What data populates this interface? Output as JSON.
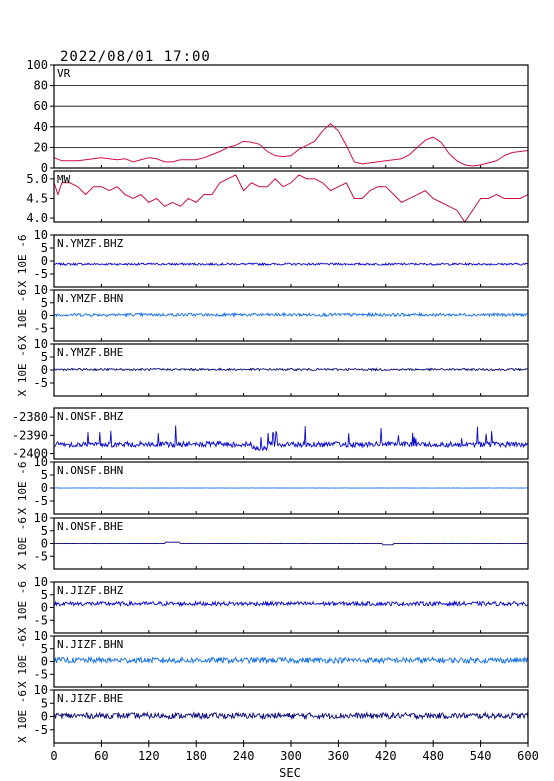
{
  "header": {
    "timestamp": "2022/08/01 17:00"
  },
  "colors": {
    "vr": "#d01040",
    "mw": "#c8103c",
    "bhz": "#0a0acd",
    "bhn": "#1670e6",
    "bhe": "#0b0b7a",
    "frame": "#000000"
  },
  "chart_data": {
    "type": "line",
    "xlabel": "SEC",
    "xlim": [
      0,
      600
    ],
    "xticks": [
      0,
      60,
      120,
      180,
      240,
      300,
      360,
      420,
      480,
      540,
      600
    ],
    "ylabel_seismic": "X 10E -6",
    "panels": [
      {
        "label": "VR",
        "ylim": [
          0,
          100
        ],
        "yticks": [
          0,
          20,
          40,
          60,
          80,
          100
        ],
        "grid": true,
        "color_key": "vr",
        "series": {
          "x": [
            0,
            10,
            20,
            30,
            40,
            50,
            60,
            70,
            80,
            90,
            100,
            110,
            120,
            130,
            140,
            150,
            160,
            170,
            180,
            190,
            200,
            210,
            220,
            230,
            240,
            250,
            260,
            270,
            280,
            290,
            300,
            310,
            320,
            330,
            340,
            350,
            360,
            370,
            380,
            390,
            400,
            410,
            420,
            430,
            440,
            450,
            460,
            470,
            480,
            490,
            500,
            510,
            520,
            530,
            540,
            550,
            560,
            570,
            580,
            590,
            600
          ],
          "y": [
            10,
            7,
            7,
            7,
            8,
            9,
            10,
            9,
            8,
            9,
            6,
            8,
            10,
            9,
            6,
            6,
            8,
            8,
            8,
            10,
            13,
            16,
            20,
            22,
            26,
            25,
            23,
            16,
            12,
            11,
            12,
            18,
            22,
            26,
            36,
            43,
            36,
            22,
            6,
            4,
            5,
            6,
            7,
            8,
            9,
            13,
            20,
            27,
            30,
            25,
            14,
            7,
            3,
            2,
            3,
            5,
            7,
            12,
            15,
            16,
            17
          ]
        }
      },
      {
        "label": "MW",
        "ylim": [
          3.9,
          5.2
        ],
        "yticks": [
          4.0,
          4.5,
          5.0
        ],
        "grid": false,
        "color_key": "mw",
        "series": {
          "x": [
            0,
            5,
            10,
            20,
            30,
            40,
            50,
            60,
            70,
            80,
            90,
            100,
            110,
            120,
            130,
            140,
            150,
            160,
            170,
            180,
            190,
            200,
            210,
            220,
            230,
            240,
            250,
            260,
            270,
            280,
            290,
            300,
            310,
            320,
            330,
            340,
            350,
            360,
            370,
            380,
            390,
            400,
            410,
            420,
            430,
            440,
            450,
            460,
            470,
            480,
            490,
            500,
            510,
            520,
            530,
            540,
            550,
            560,
            570,
            580,
            590,
            600
          ],
          "y": [
            4.9,
            4.6,
            4.9,
            4.9,
            4.8,
            4.6,
            4.8,
            4.8,
            4.7,
            4.8,
            4.6,
            4.5,
            4.6,
            4.4,
            4.5,
            4.3,
            4.4,
            4.3,
            4.5,
            4.4,
            4.6,
            4.6,
            4.9,
            5.0,
            5.1,
            4.7,
            4.9,
            4.8,
            4.8,
            5.0,
            4.8,
            4.9,
            5.1,
            5.0,
            5.0,
            4.9,
            4.7,
            4.8,
            4.9,
            4.5,
            4.5,
            4.7,
            4.8,
            4.8,
            4.6,
            4.4,
            4.5,
            4.6,
            4.7,
            4.5,
            4.4,
            4.3,
            4.2,
            3.9,
            4.2,
            4.5,
            4.5,
            4.6,
            4.5,
            4.5,
            4.5,
            4.6
          ]
        }
      },
      {
        "label": "N.YMZF.BHZ",
        "ylim": [
          -10,
          10
        ],
        "yticks": [
          -5,
          0,
          5,
          10
        ],
        "color_key": "bhz",
        "level": -1.2,
        "noise": 0.4
      },
      {
        "label": "N.YMZF.BHN",
        "ylim": [
          -10,
          10
        ],
        "yticks": [
          -5,
          0,
          5,
          10
        ],
        "color_key": "bhn",
        "level": 0.3,
        "noise": 0.6
      },
      {
        "label": "N.YMZF.BHE",
        "ylim": [
          -10,
          10
        ],
        "yticks": [
          -5,
          0,
          5,
          10
        ],
        "color_key": "bhe",
        "level": 0.2,
        "noise": 0.4
      },
      {
        "label": "N.ONSF.BHZ",
        "ylim": [
          -2403,
          -2375
        ],
        "yticks": [
          -2400,
          -2390,
          -2380
        ],
        "color_key": "bhz",
        "level": -2395,
        "noise": 1.5
      },
      {
        "label": "N.ONSF.BHN",
        "ylim": [
          -10,
          10
        ],
        "yticks": [
          -5,
          0,
          5,
          10
        ],
        "color_key": "bhn",
        "level": 0.0,
        "noise": 0.05
      },
      {
        "label": "N.ONSF.BHE",
        "ylim": [
          -10,
          10
        ],
        "yticks": [
          -5,
          0,
          5,
          10
        ],
        "color_key": "bhe",
        "level": 0.0,
        "noise": 0.05
      },
      {
        "label": "N.JIZF.BHZ",
        "ylim": [
          -10,
          10
        ],
        "yticks": [
          -5,
          0,
          5,
          10
        ],
        "color_key": "bhz",
        "level": 1.5,
        "noise": 0.8
      },
      {
        "label": "N.JIZF.BHN",
        "ylim": [
          -10,
          10
        ],
        "yticks": [
          -5,
          0,
          5,
          10
        ],
        "color_key": "bhn",
        "level": 0.5,
        "noise": 1.1
      },
      {
        "label": "N.JIZF.BHE",
        "ylim": [
          -10,
          10
        ],
        "yticks": [
          -5,
          0,
          5,
          10
        ],
        "color_key": "bhe",
        "level": 0.3,
        "noise": 1.1
      }
    ]
  }
}
